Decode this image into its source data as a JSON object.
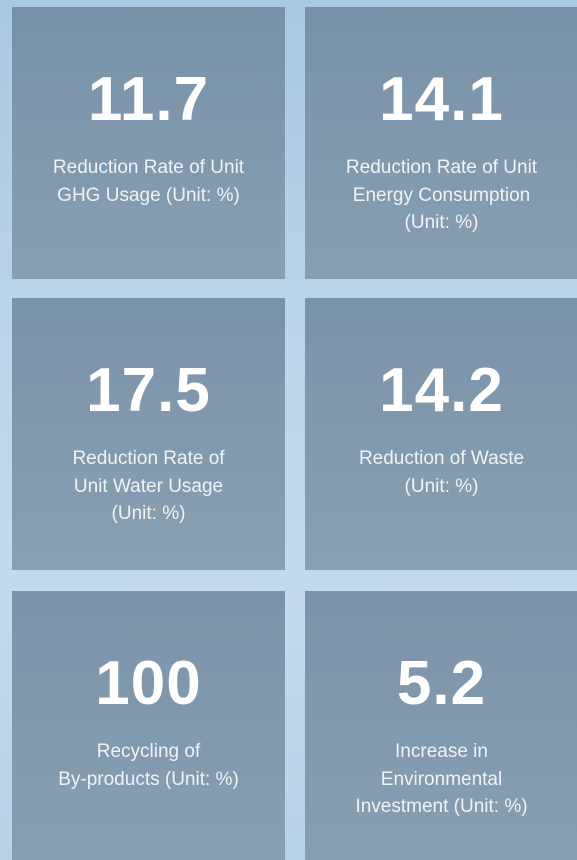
{
  "tiles": [
    {
      "value": 11.7,
      "label_lines": [
        "Reduction Rate of Unit",
        "GHG Usage (Unit: %)"
      ]
    },
    {
      "value": 14.1,
      "label_lines": [
        "Reduction Rate of Unit",
        "Energy Consumption",
        "(Unit: %)"
      ]
    },
    {
      "value": 17.5,
      "label_lines": [
        "Reduction Rate of",
        "Unit Water Usage",
        "(Unit: %)"
      ]
    },
    {
      "value": 14.2,
      "label_lines": [
        "Reduction of Waste",
        "(Unit: %)"
      ]
    },
    {
      "value": 100,
      "label_lines": [
        "Recycling of",
        "By-products (Unit: %)"
      ]
    },
    {
      "value": 5.2,
      "label_lines": [
        "Increase in",
        "Environmental",
        "Investment (Unit: %)"
      ]
    }
  ]
}
